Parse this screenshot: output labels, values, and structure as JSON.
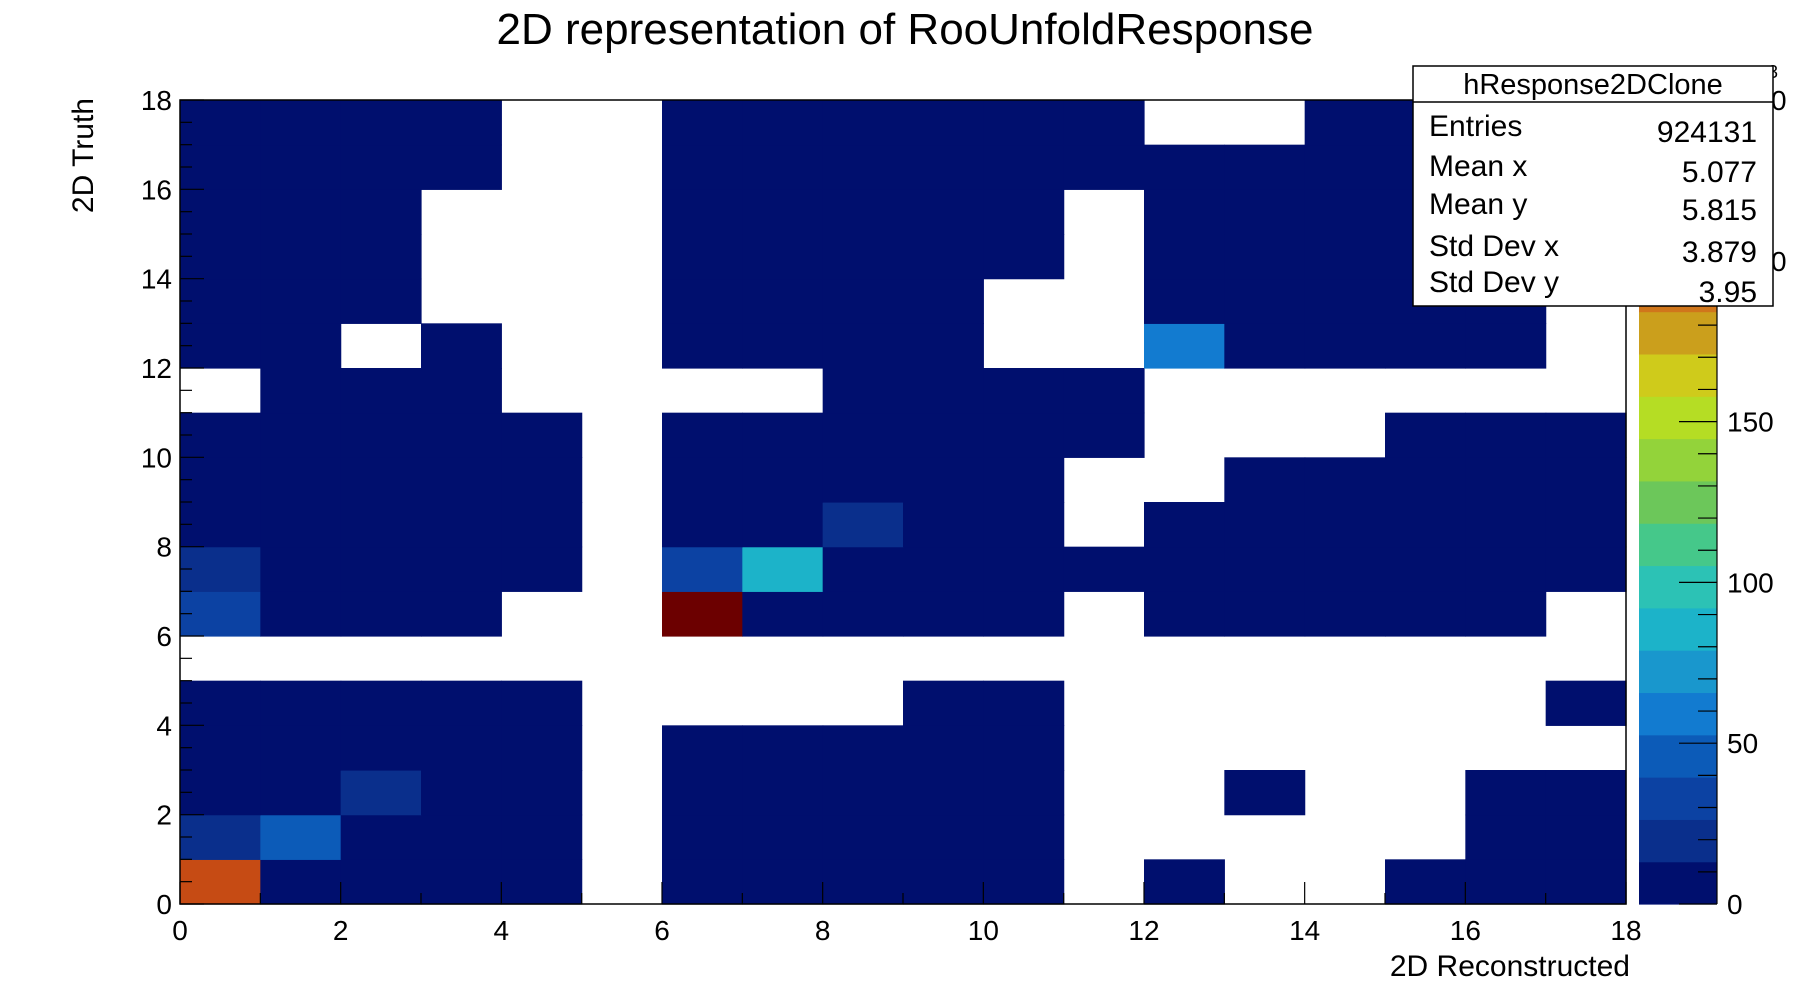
{
  "chart_data": {
    "type": "heatmap",
    "title": "2D representation of RooUnfoldResponse",
    "xlabel": "2D Reconstructed",
    "ylabel": "2D Truth",
    "xlim": [
      0,
      18
    ],
    "ylim": [
      0,
      18
    ],
    "x_ticks": [
      "0",
      "2",
      "4",
      "6",
      "8",
      "10",
      "12",
      "14",
      "16",
      "18"
    ],
    "y_ticks": [
      "0",
      "2",
      "4",
      "6",
      "8",
      "10",
      "12",
      "14",
      "16",
      "18"
    ],
    "zlim": [
      0,
      250
    ],
    "z_ticks": [
      "0",
      "50",
      "100",
      "150"
    ],
    "z_exponent_label": "3",
    "grid": false,
    "colors": {
      "background": "#ffffff",
      "palette": [
        "#000f6e",
        "#0a2f8c",
        "#0c42a3",
        "#0c5bb8",
        "#127bd0",
        "#1997cd",
        "#1cb3c9",
        "#2cc2b5",
        "#45c88a",
        "#6cc75a",
        "#93d33a",
        "#b5dd24",
        "#cfcb1b",
        "#cb9f1c",
        "#d0761b",
        "#c64b14",
        "#b2250e",
        "#910606",
        "#6c0000"
      ]
    },
    "cells_note_levels": "value bins 0..18 palette index (0 = lowest non-zero)",
    "cells": [
      [
        0,
        0,
        15
      ],
      [
        1,
        0,
        0
      ],
      [
        2,
        0,
        0
      ],
      [
        3,
        0,
        0
      ],
      [
        4,
        0,
        0
      ],
      [
        6,
        0,
        0
      ],
      [
        7,
        0,
        0
      ],
      [
        8,
        0,
        0
      ],
      [
        9,
        0,
        0
      ],
      [
        10,
        0,
        0
      ],
      [
        12,
        0,
        0
      ],
      [
        15,
        0,
        0
      ],
      [
        16,
        0,
        0
      ],
      [
        17,
        0,
        0
      ],
      [
        0,
        1,
        1
      ],
      [
        1,
        1,
        3
      ],
      [
        2,
        1,
        0
      ],
      [
        3,
        1,
        0
      ],
      [
        4,
        1,
        0
      ],
      [
        6,
        1,
        0
      ],
      [
        7,
        1,
        0
      ],
      [
        8,
        1,
        0
      ],
      [
        9,
        1,
        0
      ],
      [
        10,
        1,
        0
      ],
      [
        16,
        1,
        0
      ],
      [
        17,
        1,
        0
      ],
      [
        0,
        2,
        0
      ],
      [
        1,
        2,
        0
      ],
      [
        2,
        2,
        1
      ],
      [
        3,
        2,
        0
      ],
      [
        4,
        2,
        0
      ],
      [
        6,
        2,
        0
      ],
      [
        7,
        2,
        0
      ],
      [
        8,
        2,
        0
      ],
      [
        9,
        2,
        0
      ],
      [
        10,
        2,
        0
      ],
      [
        13,
        2,
        0
      ],
      [
        16,
        2,
        0
      ],
      [
        17,
        2,
        0
      ],
      [
        0,
        3,
        0
      ],
      [
        1,
        3,
        0
      ],
      [
        2,
        3,
        0
      ],
      [
        3,
        3,
        0
      ],
      [
        4,
        3,
        0
      ],
      [
        6,
        3,
        0
      ],
      [
        7,
        3,
        0
      ],
      [
        8,
        3,
        0
      ],
      [
        9,
        3,
        0
      ],
      [
        10,
        3,
        0
      ],
      [
        0,
        4,
        0
      ],
      [
        1,
        4,
        0
      ],
      [
        2,
        4,
        0
      ],
      [
        3,
        4,
        0
      ],
      [
        4,
        4,
        0
      ],
      [
        9,
        4,
        0
      ],
      [
        10,
        4,
        0
      ],
      [
        17,
        4,
        0
      ],
      [
        0,
        6,
        2
      ],
      [
        1,
        6,
        0
      ],
      [
        2,
        6,
        0
      ],
      [
        3,
        6,
        0
      ],
      [
        6,
        6,
        18
      ],
      [
        7,
        6,
        0
      ],
      [
        8,
        6,
        0
      ],
      [
        9,
        6,
        0
      ],
      [
        10,
        6,
        0
      ],
      [
        12,
        6,
        0
      ],
      [
        13,
        6,
        0
      ],
      [
        14,
        6,
        0
      ],
      [
        15,
        6,
        0
      ],
      [
        16,
        6,
        0
      ],
      [
        0,
        7,
        1
      ],
      [
        1,
        7,
        0
      ],
      [
        2,
        7,
        0
      ],
      [
        3,
        7,
        0
      ],
      [
        4,
        7,
        0
      ],
      [
        6,
        7,
        2
      ],
      [
        7,
        7,
        6
      ],
      [
        8,
        7,
        0
      ],
      [
        9,
        7,
        0
      ],
      [
        10,
        7,
        0
      ],
      [
        11,
        7,
        0
      ],
      [
        12,
        7,
        0
      ],
      [
        13,
        7,
        0
      ],
      [
        14,
        7,
        0
      ],
      [
        15,
        7,
        0
      ],
      [
        16,
        7,
        0
      ],
      [
        17,
        7,
        0
      ],
      [
        0,
        8,
        0
      ],
      [
        1,
        8,
        0
      ],
      [
        2,
        8,
        0
      ],
      [
        3,
        8,
        0
      ],
      [
        4,
        8,
        0
      ],
      [
        6,
        8,
        0
      ],
      [
        7,
        8,
        0
      ],
      [
        8,
        8,
        1
      ],
      [
        9,
        8,
        0
      ],
      [
        10,
        8,
        0
      ],
      [
        12,
        8,
        0
      ],
      [
        13,
        8,
        0
      ],
      [
        14,
        8,
        0
      ],
      [
        15,
        8,
        0
      ],
      [
        16,
        8,
        0
      ],
      [
        17,
        8,
        0
      ],
      [
        0,
        9,
        0
      ],
      [
        1,
        9,
        0
      ],
      [
        2,
        9,
        0
      ],
      [
        3,
        9,
        0
      ],
      [
        4,
        9,
        0
      ],
      [
        6,
        9,
        0
      ],
      [
        7,
        9,
        0
      ],
      [
        8,
        9,
        0
      ],
      [
        9,
        9,
        0
      ],
      [
        10,
        9,
        0
      ],
      [
        13,
        9,
        0
      ],
      [
        14,
        9,
        0
      ],
      [
        15,
        9,
        0
      ],
      [
        16,
        9,
        0
      ],
      [
        17,
        9,
        0
      ],
      [
        0,
        10,
        0
      ],
      [
        1,
        10,
        0
      ],
      [
        2,
        10,
        0
      ],
      [
        3,
        10,
        0
      ],
      [
        4,
        10,
        0
      ],
      [
        6,
        10,
        0
      ],
      [
        7,
        10,
        0
      ],
      [
        8,
        10,
        0
      ],
      [
        9,
        10,
        0
      ],
      [
        10,
        10,
        0
      ],
      [
        11,
        10,
        0
      ],
      [
        15,
        10,
        0
      ],
      [
        16,
        10,
        0
      ],
      [
        17,
        10,
        0
      ],
      [
        1,
        11,
        0
      ],
      [
        2,
        11,
        0
      ],
      [
        3,
        11,
        0
      ],
      [
        8,
        11,
        0
      ],
      [
        9,
        11,
        0
      ],
      [
        10,
        11,
        0
      ],
      [
        11,
        11,
        0
      ],
      [
        0,
        12,
        0
      ],
      [
        1,
        12,
        0
      ],
      [
        3,
        12,
        0
      ],
      [
        6,
        12,
        0
      ],
      [
        7,
        12,
        0
      ],
      [
        8,
        12,
        0
      ],
      [
        9,
        12,
        0
      ],
      [
        12,
        12,
        4
      ],
      [
        13,
        12,
        0
      ],
      [
        14,
        12,
        0
      ],
      [
        15,
        12,
        0
      ],
      [
        16,
        12,
        0
      ],
      [
        0,
        13,
        0
      ],
      [
        1,
        13,
        0
      ],
      [
        2,
        13,
        0
      ],
      [
        6,
        13,
        0
      ],
      [
        7,
        13,
        0
      ],
      [
        8,
        13,
        0
      ],
      [
        9,
        13,
        0
      ],
      [
        12,
        13,
        0
      ],
      [
        13,
        13,
        0
      ],
      [
        14,
        13,
        0
      ],
      [
        15,
        13,
        0
      ],
      [
        16,
        13,
        0
      ],
      [
        0,
        14,
        0
      ],
      [
        1,
        14,
        0
      ],
      [
        2,
        14,
        0
      ],
      [
        6,
        14,
        0
      ],
      [
        7,
        14,
        0
      ],
      [
        8,
        14,
        0
      ],
      [
        9,
        14,
        0
      ],
      [
        10,
        14,
        0
      ],
      [
        12,
        14,
        0
      ],
      [
        13,
        14,
        0
      ],
      [
        14,
        14,
        0
      ],
      [
        15,
        14,
        0
      ],
      [
        16,
        14,
        0
      ],
      [
        0,
        15,
        0
      ],
      [
        1,
        15,
        0
      ],
      [
        2,
        15,
        0
      ],
      [
        6,
        15,
        0
      ],
      [
        7,
        15,
        0
      ],
      [
        8,
        15,
        0
      ],
      [
        9,
        15,
        0
      ],
      [
        10,
        15,
        0
      ],
      [
        12,
        15,
        0
      ],
      [
        13,
        15,
        0
      ],
      [
        14,
        15,
        0
      ],
      [
        15,
        15,
        0
      ],
      [
        16,
        15,
        0
      ],
      [
        0,
        16,
        0
      ],
      [
        1,
        16,
        0
      ],
      [
        2,
        16,
        0
      ],
      [
        3,
        16,
        0
      ],
      [
        6,
        16,
        0
      ],
      [
        7,
        16,
        0
      ],
      [
        8,
        16,
        0
      ],
      [
        9,
        16,
        0
      ],
      [
        10,
        16,
        0
      ],
      [
        11,
        16,
        0
      ],
      [
        12,
        16,
        0
      ],
      [
        13,
        16,
        0
      ],
      [
        14,
        16,
        0
      ],
      [
        15,
        16,
        0
      ],
      [
        16,
        16,
        0
      ],
      [
        0,
        17,
        0
      ],
      [
        1,
        17,
        0
      ],
      [
        2,
        17,
        0
      ],
      [
        3,
        17,
        0
      ],
      [
        6,
        17,
        0
      ],
      [
        7,
        17,
        0
      ],
      [
        8,
        17,
        0
      ],
      [
        9,
        17,
        0
      ],
      [
        10,
        17,
        0
      ],
      [
        11,
        17,
        0
      ],
      [
        14,
        17,
        0
      ],
      [
        15,
        17,
        0
      ],
      [
        16,
        17,
        0
      ]
    ],
    "stats": {
      "title": "hResponse2DClone",
      "rows": [
        {
          "label": "Entries",
          "value": "924131"
        },
        {
          "label": "Mean x",
          "value": "5.077"
        },
        {
          "label": "Mean y",
          "value": "5.815"
        },
        {
          "label": "Std Dev x",
          "value": "3.879"
        },
        {
          "label": "Std Dev y",
          "value": "3.95"
        }
      ]
    },
    "legend": "right"
  }
}
